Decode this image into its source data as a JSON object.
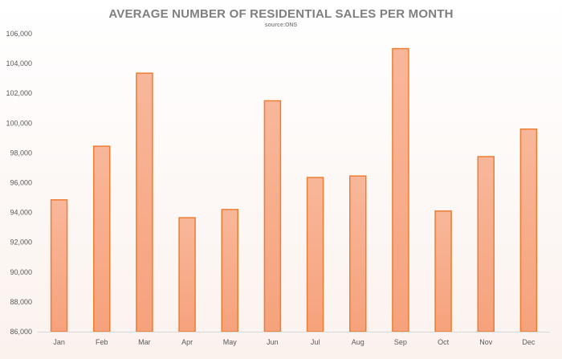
{
  "chart_data": {
    "type": "bar",
    "title": "AVERAGE NUMBER OF RESIDENTIAL SALES PER MONTH",
    "subtitle": "source:ONS",
    "xlabel": "",
    "ylabel": "",
    "categories": [
      "Jan",
      "Feb",
      "Mar",
      "Apr",
      "May",
      "Jun",
      "Jul",
      "Aug",
      "Sep",
      "Oct",
      "Nov",
      "Dec"
    ],
    "values": [
      94850,
      98450,
      103350,
      93650,
      94200,
      101500,
      96350,
      96450,
      105000,
      94100,
      97750,
      99600
    ],
    "ylim": [
      86000,
      106000
    ],
    "yticks": [
      86000,
      88000,
      90000,
      92000,
      94000,
      96000,
      98000,
      100000,
      102000,
      104000,
      106000
    ],
    "ytick_labels": [
      "86,000",
      "88,000",
      "90,000",
      "92,000",
      "94,000",
      "96,000",
      "98,000",
      "100,000",
      "102,000",
      "104,000",
      "106,000"
    ],
    "grid": false,
    "legend": "none",
    "colors": {
      "bar_fill_top": "#f8b79a",
      "bar_fill_bottom": "#f6a27c",
      "bar_stroke": "#ed7d31",
      "axis": "#d9d9d9",
      "text": "#595959",
      "title": "#7f7f7f"
    }
  }
}
